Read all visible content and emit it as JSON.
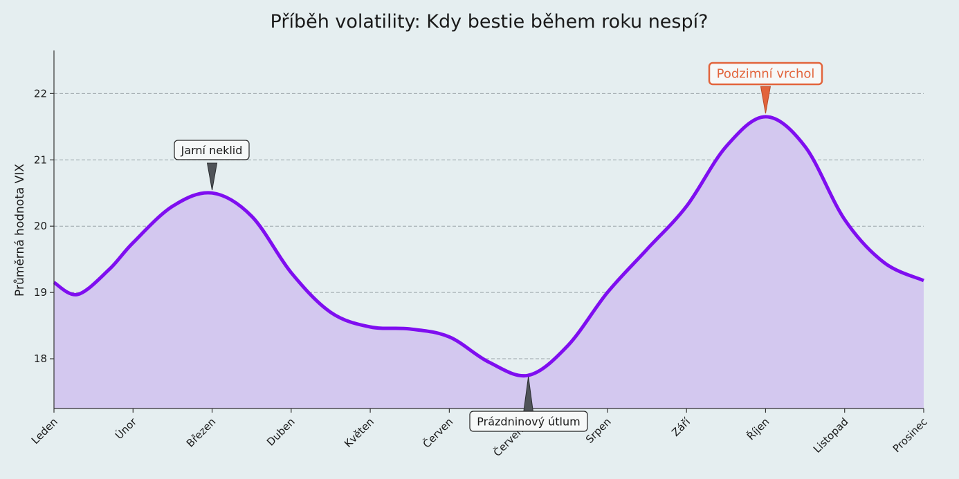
{
  "chart_data": {
    "type": "area",
    "title": "Příběh volatility: Kdy bestie během roku nespí?",
    "ylabel": "Průměrná hodnota VIX",
    "xlabel": "",
    "categories": [
      "Leden",
      "Únor",
      "Březen",
      "Duben",
      "Květen",
      "Červen",
      "Červenec",
      "Srpen",
      "Září",
      "Říjen",
      "Listopad",
      "Prosinec"
    ],
    "yticks": [
      18,
      19,
      20,
      21,
      22
    ],
    "ylim": [
      17.25,
      22.65
    ],
    "grid": "horizontal dashed",
    "curve": [
      {
        "x": 0.0,
        "y": 19.15
      },
      {
        "x": 0.3,
        "y": 18.97
      },
      {
        "x": 0.7,
        "y": 19.35
      },
      {
        "x": 1.0,
        "y": 19.75
      },
      {
        "x": 1.5,
        "y": 20.3
      },
      {
        "x": 2.0,
        "y": 20.5
      },
      {
        "x": 2.5,
        "y": 20.15
      },
      {
        "x": 3.0,
        "y": 19.3
      },
      {
        "x": 3.5,
        "y": 18.7
      },
      {
        "x": 4.0,
        "y": 18.48
      },
      {
        "x": 4.5,
        "y": 18.45
      },
      {
        "x": 5.0,
        "y": 18.33
      },
      {
        "x": 5.5,
        "y": 17.95
      },
      {
        "x": 6.0,
        "y": 17.75
      },
      {
        "x": 6.5,
        "y": 18.2
      },
      {
        "x": 7.0,
        "y": 19.0
      },
      {
        "x": 7.5,
        "y": 19.65
      },
      {
        "x": 8.0,
        "y": 20.3
      },
      {
        "x": 8.5,
        "y": 21.2
      },
      {
        "x": 9.0,
        "y": 21.65
      },
      {
        "x": 9.5,
        "y": 21.2
      },
      {
        "x": 10.0,
        "y": 20.1
      },
      {
        "x": 10.5,
        "y": 19.45
      },
      {
        "x": 11.0,
        "y": 19.18
      }
    ],
    "annotations": [
      {
        "label": "Jarní neklid",
        "x": 2,
        "y": 20.5,
        "style": "dark"
      },
      {
        "label": "Prázdninový útlum",
        "x": 6,
        "y": 17.75,
        "style": "dark"
      },
      {
        "label": "Podzimní vrchol",
        "x": 9,
        "y": 21.65,
        "style": "accent"
      }
    ],
    "colors": {
      "line": "#7f0ef0",
      "fill": "#d3c8ef",
      "accent": "#e2643c",
      "arrow_dark": "#4f5358",
      "background": "#e5eef0"
    }
  }
}
